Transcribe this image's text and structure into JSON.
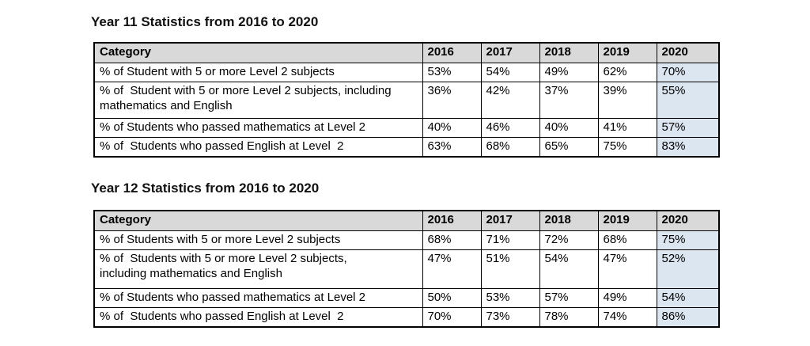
{
  "colors": {
    "page_background": "#ffffff",
    "header_row_background": "#d9d9d9",
    "highlight_2020_background": "#dce6f1",
    "table_border": "#000000",
    "text": "#000000"
  },
  "sections": [
    {
      "title": "Year 11 Statistics from 2016 to 2020",
      "table": {
        "headers": [
          "Category",
          "2016",
          "2017",
          "2018",
          "2019",
          "2020"
        ],
        "rows": [
          {
            "category": "% of Student with 5 or more Level 2 subjects",
            "values": [
              "53%",
              "54%",
              "49%",
              "62%",
              "70%"
            ]
          },
          {
            "category": "% of  Student with 5 or more Level 2 subjects, including\nmathematics and English",
            "values": [
              "36%",
              "42%",
              "37%",
              "39%",
              "55%"
            ]
          },
          {
            "category": "% of Students who passed mathematics at Level 2",
            "values": [
              "40%",
              "46%",
              "40%",
              "41%",
              "57%"
            ]
          },
          {
            "category": "% of  Students who passed English at Level  2",
            "values": [
              "63%",
              "68%",
              "65%",
              "75%",
              "83%"
            ]
          }
        ]
      }
    },
    {
      "title": "Year 12 Statistics from 2016 to 2020",
      "table": {
        "headers": [
          "Category",
          "2016",
          "2017",
          "2018",
          "2019",
          "2020"
        ],
        "rows": [
          {
            "category": "% of Students with 5 or more Level 2 subjects",
            "values": [
              "68%",
              "71%",
              "72%",
              "68%",
              "75%"
            ]
          },
          {
            "category": "% of  Students with 5 or more Level 2 subjects,\nincluding mathematics and English",
            "values": [
              "47%",
              "51%",
              "54%",
              "47%",
              "52%"
            ]
          },
          {
            "category": "% of Students who passed mathematics at Level 2",
            "values": [
              "50%",
              "53%",
              "57%",
              "49%",
              "54%"
            ]
          },
          {
            "category": "% of  Students who passed English at Level  2",
            "values": [
              "70%",
              "73%",
              "78%",
              "74%",
              "86%"
            ]
          }
        ]
      }
    }
  ]
}
